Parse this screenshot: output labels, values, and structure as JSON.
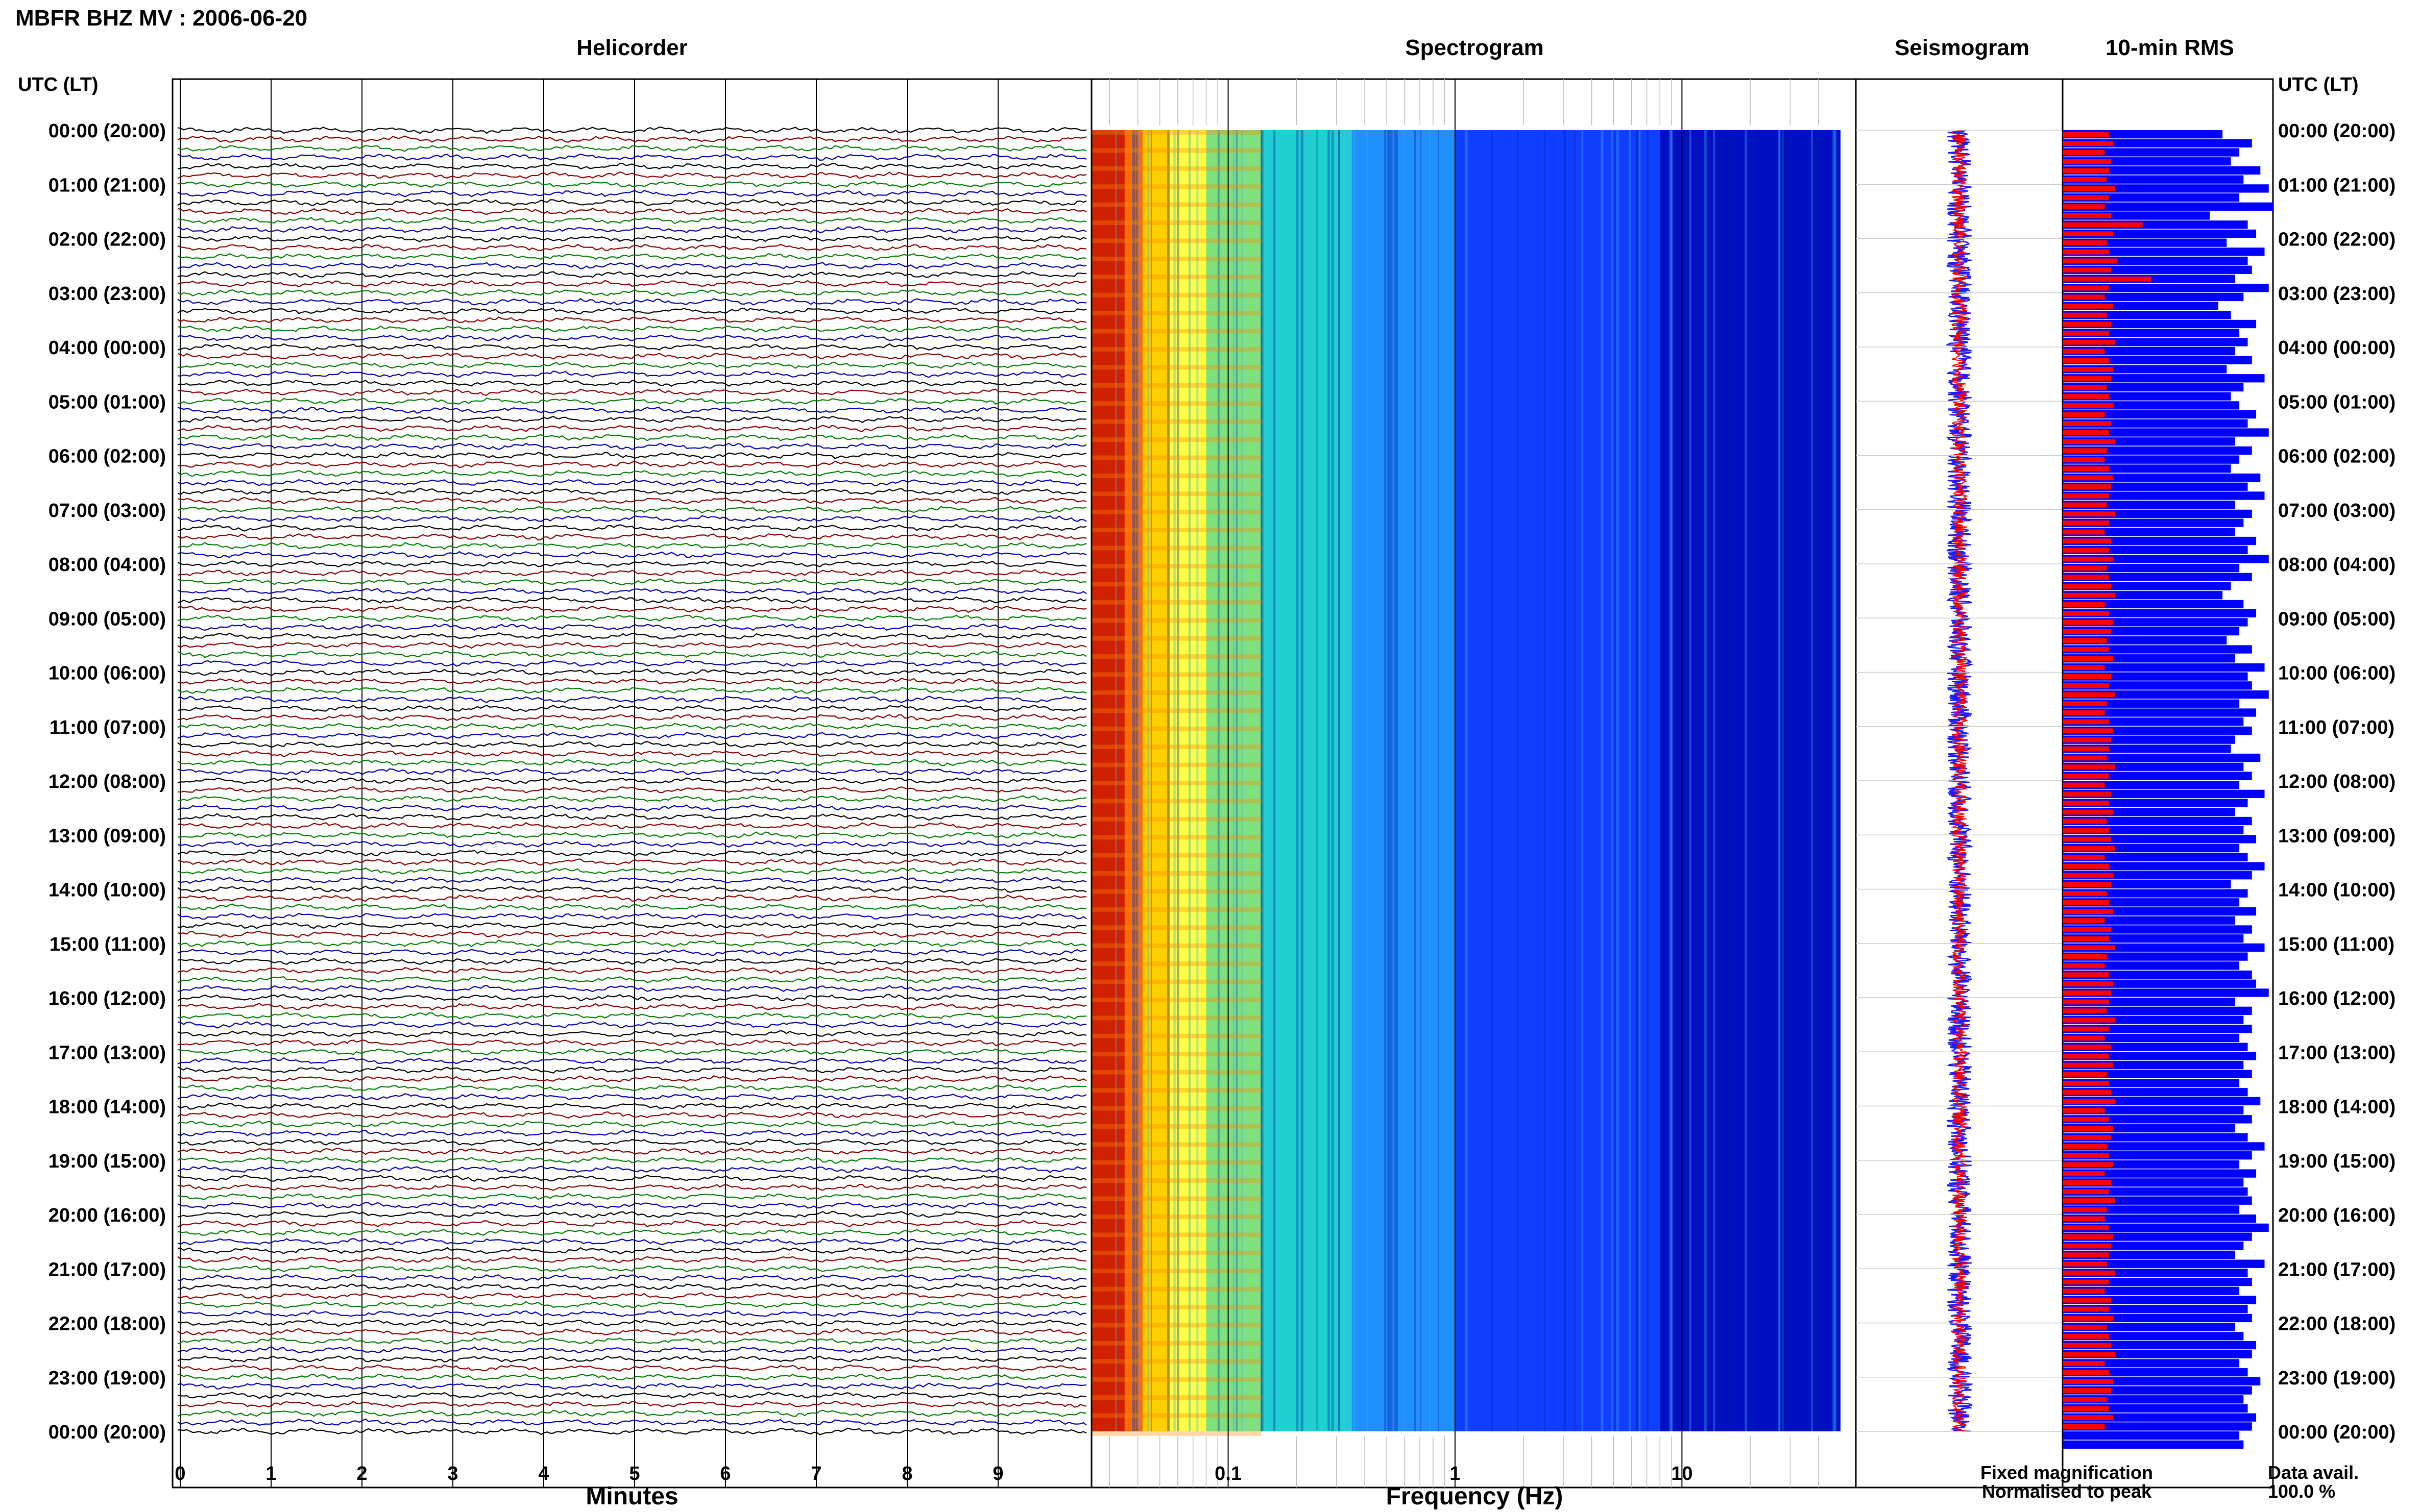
{
  "page_title": "MBFR BHZ MV : 2006-06-20",
  "panels": {
    "helicorder": "Helicorder",
    "spectrogram": "Spectrogram",
    "seismogram": "Seismogram",
    "rms": "10-min RMS"
  },
  "axis": {
    "time_header": "UTC (LT)",
    "minutes_label": "Minutes",
    "frequency_label": "Frequency (Hz)"
  },
  "legend": {
    "fixed": "Fixed magnification",
    "normalised": "Normalised to peak",
    "fixed_color": "#1a1aff",
    "normalised_color": "#ff0000"
  },
  "data_avail": {
    "label": "Data avail.",
    "value": "100.0 %"
  },
  "colors": {
    "trace_cycle": [
      "#000000",
      "#8b0000",
      "#008000",
      "#0000b0"
    ],
    "spectrogram_scale": [
      "#d02000",
      "#ff6a00",
      "#ffd000",
      "#ffff40",
      "#7fe07f",
      "#20d0d0",
      "#2090ff",
      "#1040ff",
      "#0010c0"
    ],
    "rms_fixed": "#0000ff",
    "rms_normalised": "#ff0000"
  },
  "chart_data": [
    {
      "type": "line",
      "name": "Helicorder",
      "title": "Helicorder",
      "xlabel": "Minutes",
      "xticks": [
        0,
        1,
        2,
        3,
        4,
        5,
        6,
        7,
        8,
        9
      ],
      "xlim": [
        0,
        10
      ],
      "rows_per_hour": 6,
      "yticks": [
        "00:00 (20:00)",
        "01:00 (21:00)",
        "02:00 (22:00)",
        "03:00 (23:00)",
        "04:00 (00:00)",
        "05:00 (01:00)",
        "06:00 (02:00)",
        "07:00 (03:00)",
        "08:00 (04:00)",
        "09:00 (05:00)",
        "10:00 (06:00)",
        "11:00 (07:00)",
        "12:00 (08:00)",
        "13:00 (09:00)",
        "14:00 (10:00)",
        "15:00 (11:00)",
        "16:00 (12:00)",
        "17:00 (13:00)",
        "18:00 (14:00)",
        "19:00 (15:00)",
        "20:00 (16:00)",
        "21:00 (17:00)",
        "22:00 (18:00)",
        "23:00 (19:00)",
        "00:00 (20:00)"
      ]
    },
    {
      "type": "heatmap",
      "name": "Spectrogram",
      "title": "Spectrogram",
      "xlabel": "Frequency (Hz)",
      "xscale": "log",
      "xticks": [
        0.1,
        1,
        10
      ],
      "xlim": [
        0.025,
        50
      ]
    },
    {
      "type": "line",
      "name": "Seismogram",
      "title": "Seismogram",
      "series": [
        {
          "name": "Fixed magnification"
        },
        {
          "name": "Normalised to peak"
        }
      ]
    },
    {
      "type": "bar",
      "name": "10-min RMS",
      "title": "10-min RMS",
      "orientation": "horizontal",
      "series_fixed_relative": [
        0.76,
        0.9,
        0.84,
        0.8,
        0.94,
        0.86,
        0.98,
        0.84,
        1.0,
        0.7,
        0.88,
        0.92,
        0.78,
        0.96,
        0.88,
        0.9,
        0.82,
        0.98,
        0.86,
        0.74,
        0.8,
        0.92,
        0.84,
        0.88,
        0.82,
        0.9,
        0.78,
        0.96,
        0.86,
        0.8,
        0.84,
        0.92,
        0.88,
        0.98,
        0.82,
        0.9,
        0.84,
        0.8,
        0.94,
        0.88,
        0.96,
        0.82,
        0.9,
        0.86,
        0.82,
        0.92,
        0.88,
        0.98,
        0.84,
        0.9,
        0.8,
        0.76,
        0.86,
        0.92,
        0.88,
        0.84,
        0.78,
        0.9,
        0.82,
        0.96,
        0.88,
        0.9,
        0.98,
        0.84,
        0.92,
        0.86,
        0.9,
        0.82,
        0.8,
        0.94,
        0.86,
        0.9,
        0.84,
        0.96,
        0.88,
        0.82,
        0.9,
        0.86,
        0.92,
        0.84,
        0.88,
        0.96,
        0.9,
        0.8,
        0.88,
        0.84,
        0.92,
        0.82,
        0.9,
        0.86,
        0.96,
        0.88,
        0.84,
        0.9,
        0.92,
        0.98,
        0.82,
        0.9,
        0.86,
        0.9,
        0.84,
        0.88,
        0.92,
        0.86,
        0.9,
        0.84,
        0.88,
        0.94,
        0.86,
        0.9,
        0.82,
        0.88,
        0.96,
        0.9,
        0.84,
        0.92,
        0.86,
        0.88,
        0.9,
        0.84,
        0.92,
        0.98,
        0.9,
        0.86,
        0.82,
        0.96,
        0.88,
        0.9,
        0.84,
        0.92,
        0.88,
        0.9,
        0.82,
        0.86,
        0.92,
        0.9,
        0.84,
        0.88,
        0.94,
        0.9,
        0.86,
        0.88,
        0.92,
        0.9,
        0.84,
        0.86
      ],
      "series_normalised_relative": [
        0.22,
        0.24,
        0.2,
        0.23,
        0.22,
        0.21,
        0.25,
        0.22,
        0.2,
        0.23,
        0.38,
        0.24,
        0.21,
        0.22,
        0.26,
        0.23,
        0.42,
        0.22,
        0.2,
        0.24,
        0.21,
        0.23,
        0.22,
        0.25,
        0.2,
        0.22,
        0.24,
        0.23,
        0.21,
        0.22,
        0.24,
        0.2,
        0.23,
        0.22,
        0.25,
        0.21,
        0.2,
        0.22,
        0.24,
        0.23,
        0.22,
        0.21,
        0.25,
        0.22,
        0.2,
        0.23,
        0.22,
        0.24,
        0.21,
        0.22,
        0.23,
        0.25,
        0.2,
        0.22,
        0.24,
        0.23,
        0.21,
        0.22,
        0.24,
        0.2,
        0.23,
        0.22,
        0.25,
        0.21,
        0.2,
        0.22,
        0.24,
        0.23,
        0.22,
        0.21,
        0.25,
        0.22,
        0.2,
        0.23,
        0.22,
        0.24,
        0.21,
        0.22,
        0.23,
        0.25,
        0.2,
        0.22,
        0.24,
        0.23,
        0.21,
        0.22,
        0.24,
        0.2,
        0.23,
        0.22,
        0.25,
        0.21,
        0.2,
        0.22,
        0.24,
        0.23,
        0.22,
        0.21,
        0.25,
        0.22,
        0.2,
        0.23,
        0.22,
        0.24,
        0.21,
        0.22,
        0.23,
        0.25,
        0.2,
        0.22,
        0.24,
        0.23,
        0.21,
        0.22,
        0.24,
        0.2,
        0.23,
        0.22,
        0.25,
        0.21,
        0.2,
        0.22,
        0.24,
        0.23,
        0.22,
        0.21,
        0.25,
        0.22,
        0.2,
        0.23,
        0.22,
        0.24,
        0.21,
        0.22,
        0.23,
        0.25,
        0.2,
        0.22,
        0.24,
        0.23,
        0.21,
        0.22,
        0.24,
        0.2
      ]
    }
  ]
}
